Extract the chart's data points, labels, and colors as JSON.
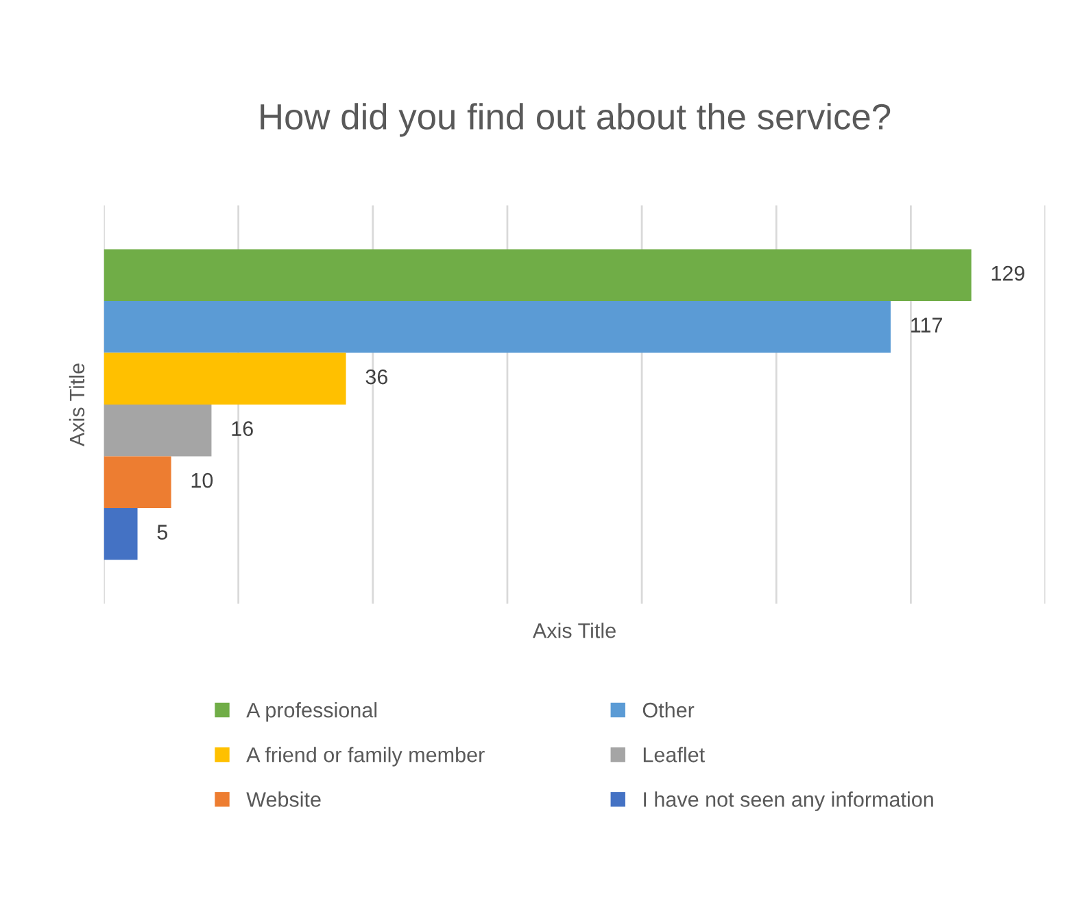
{
  "chart_data": {
    "type": "bar",
    "orientation": "horizontal",
    "title": "How did you find out about the service?",
    "xlabel": "Axis Title",
    "ylabel": "Axis Title",
    "categories": [
      null
    ],
    "series": [
      {
        "name": "A professional",
        "color": "#70ad47",
        "values": [
          129
        ]
      },
      {
        "name": "Other",
        "color": "#5b9bd5",
        "values": [
          117
        ]
      },
      {
        "name": "A friend or family member",
        "color": "#ffc000",
        "values": [
          36
        ]
      },
      {
        "name": "Leaflet",
        "color": "#a5a5a5",
        "values": [
          16
        ]
      },
      {
        "name": "Website",
        "color": "#ed7d31",
        "values": [
          10
        ]
      },
      {
        "name": "I have not seen any information",
        "color": "#4472c4",
        "values": [
          5
        ]
      }
    ],
    "xlim": [
      0,
      140
    ],
    "xticks": [
      {
        "value": 0,
        "label": null
      },
      {
        "value": 20,
        "label": null
      },
      {
        "value": 40,
        "label": null
      },
      {
        "value": 60,
        "label": null
      },
      {
        "value": 80,
        "label": null
      },
      {
        "value": 100,
        "label": null
      },
      {
        "value": 120,
        "label": null
      },
      {
        "value": 140,
        "label": null
      }
    ],
    "data_labels": true,
    "grid": "x",
    "legend": "bottom",
    "tick_labels": false
  }
}
